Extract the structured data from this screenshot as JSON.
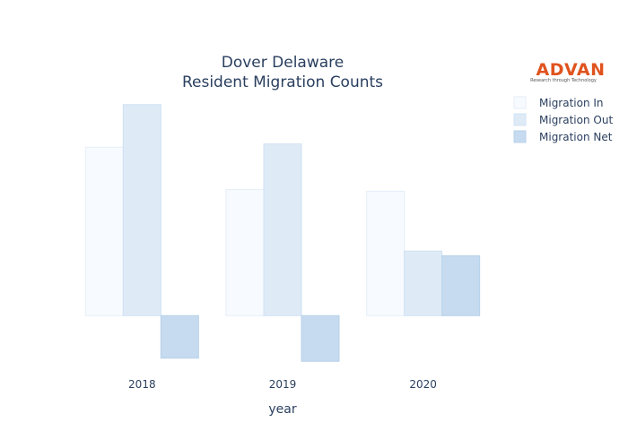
{
  "logo": {
    "name": "ADVAN",
    "tagline": "Research through Technology",
    "color": "#e0531e"
  },
  "chart_data": {
    "type": "bar",
    "title_lines": [
      "Dover Delaware",
      "Resident Migration Counts"
    ],
    "xlabel": "year",
    "ylabel": "",
    "categories": [
      "2018",
      "2019",
      "2020"
    ],
    "series": [
      {
        "name": "Migration In",
        "values": [
          1070,
          800,
          790
        ],
        "color": "#f7fbff",
        "stroke": "#e6eef8"
      },
      {
        "name": "Migration Out",
        "values": [
          1340,
          1090,
          410
        ],
        "color": "#deebf7",
        "stroke": "#d0e1f3"
      },
      {
        "name": "Migration Net",
        "values": [
          -270,
          -290,
          380
        ],
        "color": "#c6dbef",
        "stroke": "#b8d1ea"
      }
    ],
    "ylim": [
      -300,
      1350
    ],
    "grid": false,
    "show_y_ticks": false,
    "legend_position": "top-right"
  }
}
